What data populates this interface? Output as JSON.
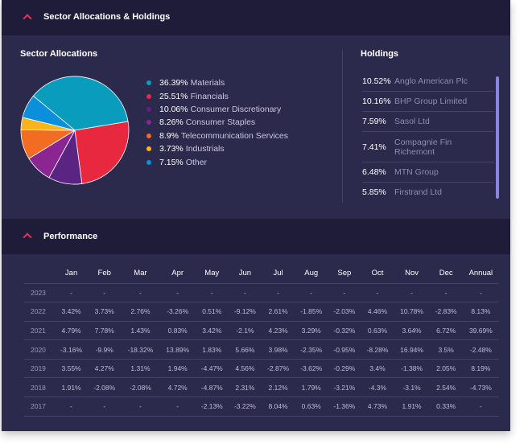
{
  "sector_section": {
    "title": "Sector Allocations & Holdings",
    "allocations_title": "Sector Allocations",
    "holdings_title": "Holdings"
  },
  "sectors": [
    {
      "pct": "36.39%",
      "name": "Materials",
      "value": 36.39,
      "color": "#0a9cbc"
    },
    {
      "pct": "25.51%",
      "name": "Financials",
      "value": 25.51,
      "color": "#e8283e"
    },
    {
      "pct": "10.06%",
      "name": "Consumer Discretionary",
      "value": 10.06,
      "color": "#5b2483"
    },
    {
      "pct": "8.26%",
      "name": "Consumer Staples",
      "value": 8.26,
      "color": "#8b2591"
    },
    {
      "pct": "8.9%",
      "name": "Telecommunication Services",
      "value": 8.9,
      "color": "#f26d21"
    },
    {
      "pct": "3.73%",
      "name": "Industrials",
      "value": 3.73,
      "color": "#f7b519"
    },
    {
      "pct": "7.15%",
      "name": "Other",
      "value": 7.15,
      "color": "#0a8fdc"
    }
  ],
  "holdings": [
    {
      "pct": "10.52%",
      "name": "Anglo American Plc"
    },
    {
      "pct": "10.16%",
      "name": "BHP Group Limited"
    },
    {
      "pct": "7.59%",
      "name": "Sasol Ltd"
    },
    {
      "pct": "7.41%",
      "name": "Compagnie Fin Richemont"
    },
    {
      "pct": "6.48%",
      "name": "MTN Group"
    },
    {
      "pct": "5.85%",
      "name": "Firstrand Ltd"
    }
  ],
  "performance_section": {
    "title": "Performance"
  },
  "performance": {
    "columns": [
      "Jan",
      "Feb",
      "Mar",
      "Apr",
      "May",
      "Jun",
      "Jul",
      "Aug",
      "Sep",
      "Oct",
      "Nov",
      "Dec",
      "Annual"
    ],
    "rows": [
      {
        "year": "2023",
        "values": [
          "-",
          "-",
          "-",
          "-",
          "-",
          "-",
          "-",
          "-",
          "-",
          "-",
          "-",
          "-",
          "-"
        ]
      },
      {
        "year": "2022",
        "values": [
          "3.42%",
          "3.73%",
          "2.76%",
          "-3.26%",
          "0.51%",
          "-9.12%",
          "2.61%",
          "-1.85%",
          "-2.03%",
          "4.46%",
          "10.78%",
          "-2.83%",
          "8.13%"
        ]
      },
      {
        "year": "2021",
        "values": [
          "4.79%",
          "7.78%",
          "1.43%",
          "0.83%",
          "3.42%",
          "-2.1%",
          "4.23%",
          "3.29%",
          "-0.32%",
          "0.63%",
          "3.64%",
          "6.72%",
          "39.69%"
        ]
      },
      {
        "year": "2020",
        "values": [
          "-3.16%",
          "-9.9%",
          "-18.32%",
          "13.89%",
          "1.83%",
          "5.66%",
          "3.98%",
          "-2.35%",
          "-0.95%",
          "-8.28%",
          "16.94%",
          "3.5%",
          "-2.48%"
        ]
      },
      {
        "year": "2019",
        "values": [
          "3.55%",
          "4.27%",
          "1.31%",
          "1.94%",
          "-4.47%",
          "4.56%",
          "-2.87%",
          "-3.62%",
          "-0.29%",
          "3.4%",
          "-1.38%",
          "2.05%",
          "8.19%"
        ]
      },
      {
        "year": "2018",
        "values": [
          "1.91%",
          "-2.08%",
          "-2.08%",
          "4.72%",
          "-4.87%",
          "2.31%",
          "2.12%",
          "1.79%",
          "-3.21%",
          "-4.3%",
          "-3.1%",
          "2.54%",
          "-4.73%"
        ]
      },
      {
        "year": "2017",
        "values": [
          "-",
          "-",
          "-",
          "-",
          "-2.13%",
          "-3.22%",
          "8.04%",
          "0.63%",
          "-1.36%",
          "4.73%",
          "1.91%",
          "0.33%",
          "-"
        ]
      }
    ]
  },
  "colors": {
    "accent": "#e8325a",
    "header_bg": "#1e1c38",
    "panel_bg": "#2c2a4c",
    "scrollbar": "#8a85e0"
  },
  "icons": {
    "collapse": "chevron-up-icon"
  }
}
